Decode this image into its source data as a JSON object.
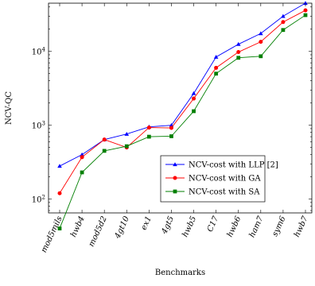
{
  "chart_data": {
    "type": "line",
    "xlabel": "Benchmarks",
    "ylabel": "NCV-QC",
    "yscale": "log",
    "ylim": [
      65,
      45000
    ],
    "yticks": [
      {
        "value": 100,
        "base": "10",
        "exp": "2"
      },
      {
        "value": 1000,
        "base": "10",
        "exp": "3"
      },
      {
        "value": 10000,
        "base": "10",
        "exp": "4"
      }
    ],
    "categories": [
      "mod5mils",
      "hwb4",
      "mod5d2",
      "4gt10",
      "ex1",
      "4gt5",
      "hwb5",
      "C17",
      "hwb6",
      "ham7",
      "sym6",
      "hwb7"
    ],
    "series": [
      {
        "name": "NCV-cost with LLP [2]",
        "color": "#0000ff",
        "marker": "triangle",
        "values": [
          280,
          400,
          640,
          760,
          950,
          1000,
          2700,
          8400,
          12500,
          17500,
          30000,
          45000
        ]
      },
      {
        "name": "NCV-cost with GA",
        "color": "#ff0000",
        "marker": "circle",
        "values": [
          120,
          370,
          640,
          500,
          930,
          920,
          2300,
          6000,
          9800,
          13500,
          25000,
          36000
        ]
      },
      {
        "name": "NCV-cost with SA",
        "color": "#007f00",
        "marker": "square",
        "values": [
          40,
          230,
          450,
          520,
          700,
          710,
          1550,
          5000,
          8200,
          8600,
          19500,
          31000
        ]
      }
    ],
    "legend_position": "bottom-right",
    "grid": false
  }
}
